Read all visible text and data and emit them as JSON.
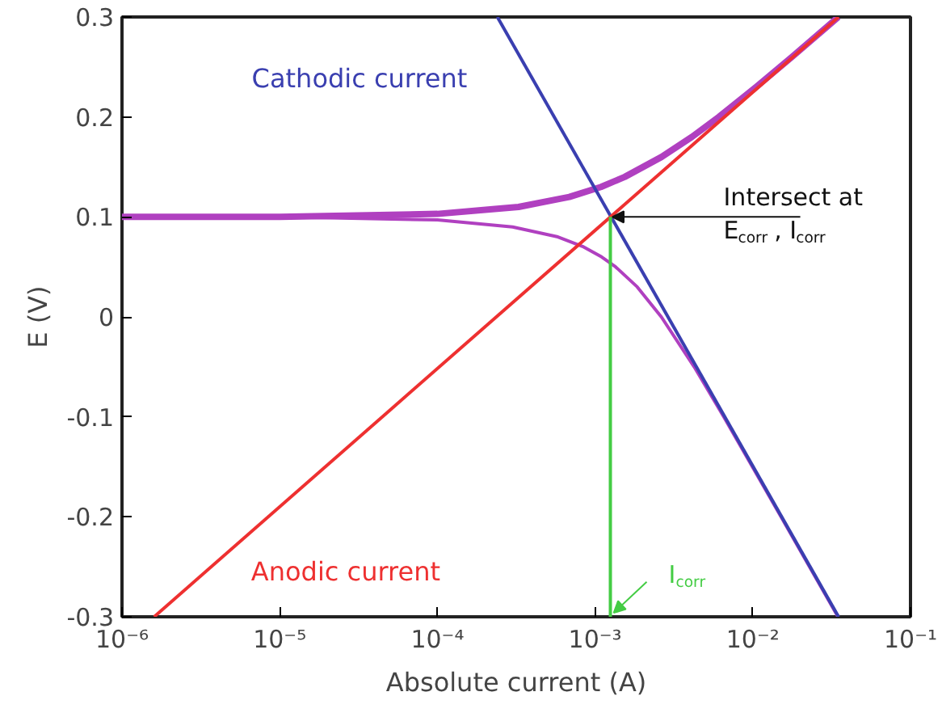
{
  "chart_data": {
    "type": "line",
    "xlabel": "Absolute current (A)",
    "ylabel": "E (V)",
    "log": "x",
    "grid": false,
    "marker": "none",
    "line_style": "solid",
    "xlim": [
      1e-06,
      0.1
    ],
    "ylim": [
      -0.3,
      0.3
    ],
    "xticks": [
      {
        "value": 1e-06,
        "label": "10⁻⁶"
      },
      {
        "value": 1e-05,
        "label": "10⁻⁵"
      },
      {
        "value": 0.0001,
        "label": "10⁻⁴"
      },
      {
        "value": 0.001,
        "label": "10⁻³"
      },
      {
        "value": 0.01,
        "label": "10⁻²"
      },
      {
        "value": 0.1,
        "label": "10⁻¹"
      }
    ],
    "yticks": [
      -0.3,
      -0.2,
      -0.1,
      0,
      0.1,
      0.2,
      0.3
    ],
    "series": [
      {
        "color": "#b040c0",
        "x": [
          1e-06,
          1e-05,
          0.0001,
          0.000327,
          0.000686,
          0.00109,
          0.00154,
          0.00264,
          0.00411,
          0.00609,
          0.0105,
          0.0177,
          0.0349
        ],
        "values": [
          0.1,
          0.1,
          0.103,
          0.11,
          0.12,
          0.13,
          0.14,
          0.16,
          0.18,
          0.2,
          0.23,
          0.26,
          0.3
        ]
      },
      {
        "color": "#b040c0",
        "x": [
          1e-06,
          1e-05,
          0.0001,
          0.0003,
          0.000581,
          0.000846,
          0.0011,
          0.00135,
          0.00185,
          0.00263,
          0.00425,
          0.00655,
          0.0151,
          0.0347
        ],
        "values": [
          0.1,
          0.1,
          0.097,
          0.09,
          0.08,
          0.07,
          0.06,
          0.05,
          0.03,
          0,
          -0.05,
          -0.1,
          -0.2,
          -0.3
        ]
      },
      {
        "name": "Cathodic current",
        "color": "#3a3fb0",
        "x": [
          0.00024,
          0.035
        ],
        "values": [
          0.3,
          -0.3
        ]
      },
      {
        "name": "Anodic current",
        "color": "#ee3030",
        "x": [
          1.6e-06,
          0.035
        ],
        "values": [
          -0.3,
          0.3
        ]
      },
      {
        "color": "#44cc44",
        "x": [
          0.00125,
          0.00125
        ],
        "values": [
          -0.3,
          0.1
        ]
      }
    ],
    "annotations": [
      {
        "text": "Intersect at\nE$_{corr}$, I$_{corr}$",
        "x": 0.00125,
        "y": 0.1
      },
      {
        "text": "I$_{corr}$",
        "x": 0.00125,
        "y": -0.3
      }
    ]
  }
}
